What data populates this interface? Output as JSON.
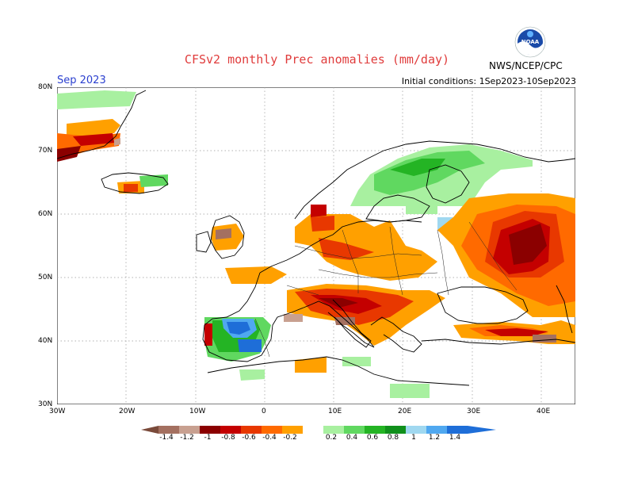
{
  "title": "CFSv2 monthly Prec anomalies (mm/day)",
  "month_label": "Sep 2023",
  "initial_conditions": "Initial conditions: 1Sep2023-10Sep2023",
  "agency": "NWS/NCEP/CPC",
  "logo_text": "NOAA",
  "lat_labels": [
    "80N",
    "70N",
    "60N",
    "50N",
    "40N",
    "30N"
  ],
  "lon_labels": [
    "30W",
    "20W",
    "10W",
    "0",
    "10E",
    "20E",
    "30E",
    "40E"
  ],
  "colorbar": {
    "labels": [
      "-1.4",
      "-1.2",
      "-1",
      "-0.8",
      "-0.6",
      "-0.4",
      "-0.2",
      "0.2",
      "0.4",
      "0.6",
      "0.8",
      "1",
      "1.2",
      "1.4"
    ],
    "colors": [
      "#7a4a3a",
      "#a47060",
      "#c8a090",
      "#8b0000",
      "#c40000",
      "#e83800",
      "#ff6a00",
      "#ffa000",
      "#ffffff",
      "#a8f0a0",
      "#60d860",
      "#24b424",
      "#10901c",
      "#a0d8f0",
      "#50a8f0",
      "#1e6ed8"
    ]
  }
}
